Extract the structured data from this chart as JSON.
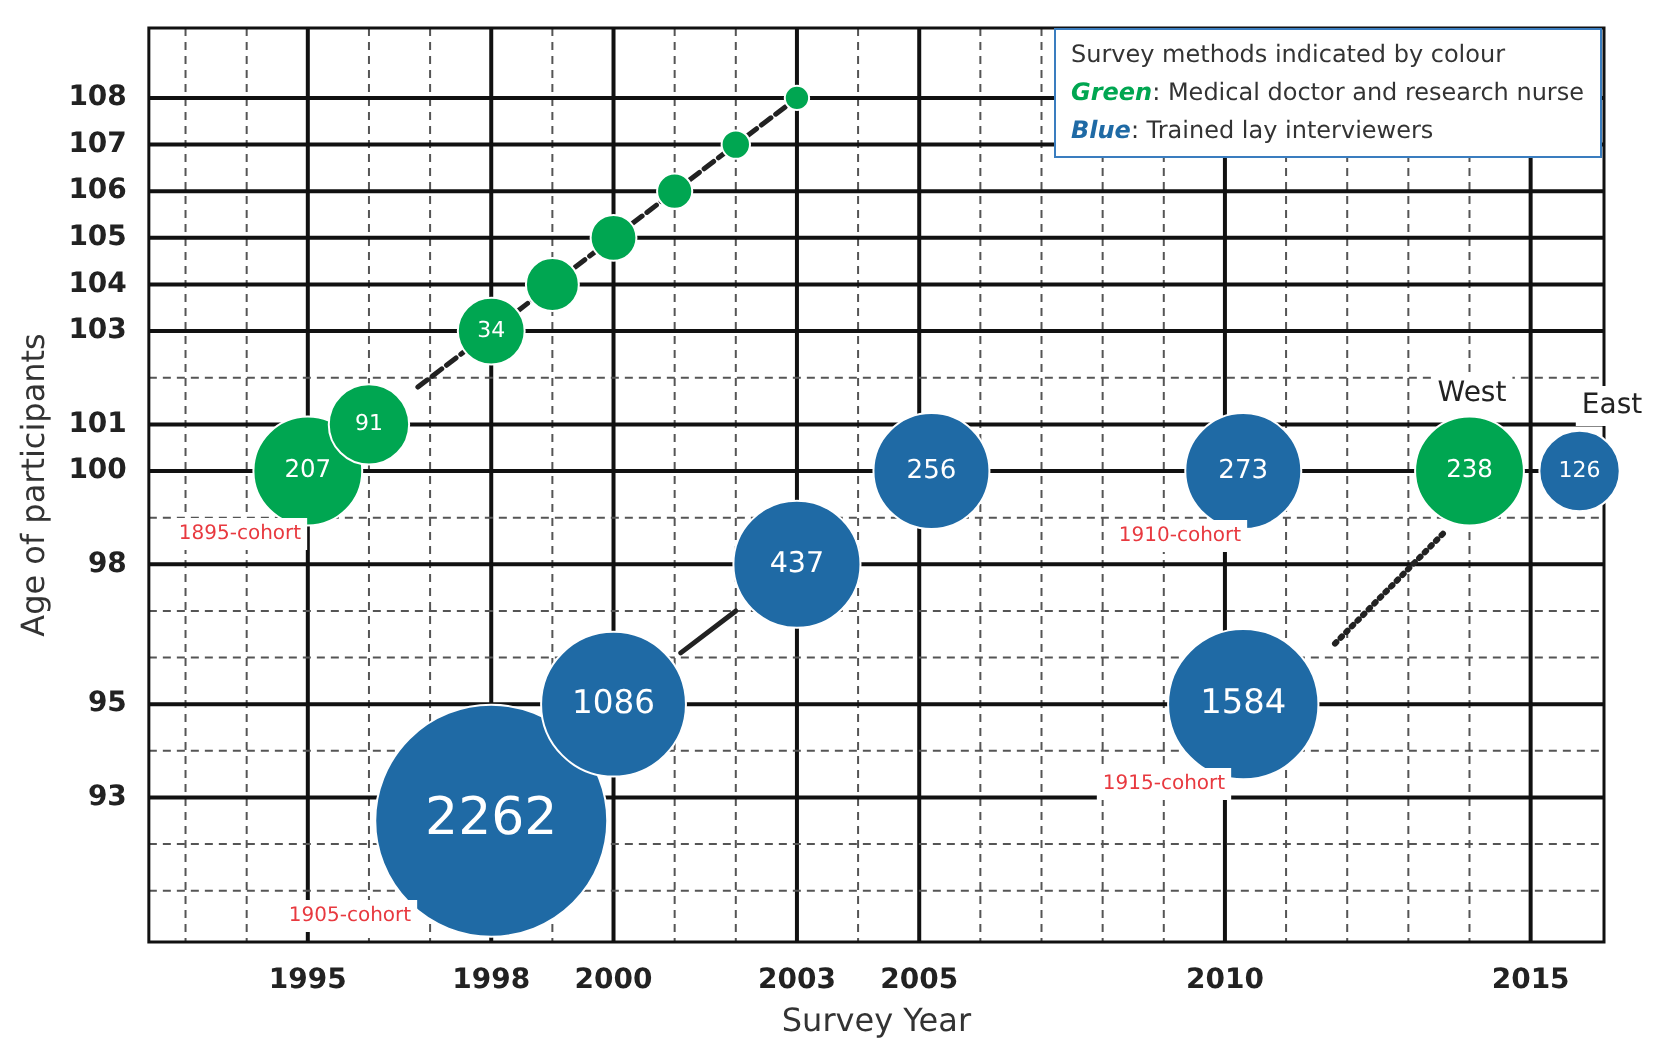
{
  "chart_data": {
    "type": "bubble",
    "xlabel": "Survey Year",
    "ylabel": "Age of participants",
    "legend_title": "Survey methods indicated by colour",
    "legend": "top right",
    "grid": true,
    "xlim": [
      1992.4,
      2016.2
    ],
    "xticks": [
      {
        "value": 1993,
        "label": null
      },
      {
        "value": 1994,
        "label": null
      },
      1995,
      {
        "value": 1996,
        "label": null
      },
      {
        "value": 1997,
        "label": null
      },
      1998,
      {
        "value": 1999,
        "label": null
      },
      2000,
      {
        "value": 2001,
        "label": null
      },
      {
        "value": 2002,
        "label": null
      },
      2003,
      {
        "value": 2004,
        "label": null
      },
      2005,
      {
        "value": 2006,
        "label": null
      },
      {
        "value": 2007,
        "label": null
      },
      {
        "value": 2008,
        "label": null
      },
      {
        "value": 2009,
        "label": null
      },
      2010,
      {
        "value": 2011,
        "label": null
      },
      {
        "value": 2012,
        "label": null
      },
      {
        "value": 2013,
        "label": null
      },
      {
        "value": 2014,
        "label": null
      },
      2015
    ],
    "ylim": [
      89.9,
      109.5
    ],
    "yticks": [
      {
        "value": 91,
        "label": null
      },
      {
        "value": 92,
        "label": null
      },
      93,
      {
        "value": 94,
        "label": null
      },
      95,
      {
        "value": 96,
        "label": null
      },
      {
        "value": 97,
        "label": null
      },
      98,
      {
        "value": 99,
        "label": null
      },
      100,
      101,
      {
        "value": 102,
        "label": null
      },
      103,
      104,
      105,
      106,
      107,
      108
    ],
    "series": [
      {
        "type": "line",
        "color": "#222222",
        "line_style": "dashed",
        "marker": "none",
        "x": [
          1996.8,
          2002.9
        ],
        "values": [
          101.8,
          107.9
        ]
      },
      {
        "type": "line",
        "color": "#222222",
        "line_style": "solid",
        "marker": "none",
        "x": [
          2001.1,
          2002
        ],
        "values": [
          96.1,
          97
        ]
      },
      {
        "type": "line",
        "color": "#222222",
        "line_style": "dotted",
        "marker": "none",
        "x": [
          2011.8,
          2013.6
        ],
        "values": [
          96.3,
          98.7
        ]
      },
      {
        "name": "Green: Medical doctor and research nurse",
        "color": "#00a651",
        "x": [
          1995,
          1996,
          1998,
          1999,
          2000,
          2001,
          2002,
          2003,
          2014
        ],
        "values": [
          100,
          101,
          103,
          104,
          105,
          106,
          107,
          108,
          100
        ],
        "sizes": [
          0.22,
          0.12,
          0.083,
          0.052,
          0.039,
          0.023,
          0.015,
          0.011,
          0.22
        ]
      },
      {
        "name": "Blue: Trained lay interviewers",
        "color": "#1f6aa5",
        "x": [
          1998,
          2000,
          2003,
          2005.2,
          2010.3,
          2010.3,
          2015.8
        ],
        "values": [
          92.5,
          95,
          98,
          100,
          100,
          95,
          100
        ],
        "sizes": [
          1,
          0.39,
          0.3,
          0.25,
          0.25,
          0.42,
          0.12
        ]
      }
    ],
    "annotations": [
      {
        "text": "207",
        "x": 1995,
        "y": 100
      },
      {
        "text": "91",
        "x": 1996,
        "y": 101
      },
      {
        "text": "34",
        "x": 1998,
        "y": 103
      },
      {
        "text": "238",
        "x": 2014,
        "y": 100
      },
      {
        "text": "2262",
        "x": 1998,
        "y": 92.5
      },
      {
        "text": "1086",
        "x": 2000,
        "y": 95
      },
      {
        "text": "437",
        "x": 2003,
        "y": 98
      },
      {
        "text": "256",
        "x": 2005.2,
        "y": 100
      },
      {
        "text": "273",
        "x": 2010.3,
        "y": 100
      },
      {
        "text": "1584",
        "x": 2010.3,
        "y": 95
      },
      {
        "text": "126",
        "x": 2015.8,
        "y": 100
      },
      "1895-cohort",
      "1905-cohort",
      "1910-cohort",
      "1915-cohort",
      "West",
      "East"
    ]
  }
}
